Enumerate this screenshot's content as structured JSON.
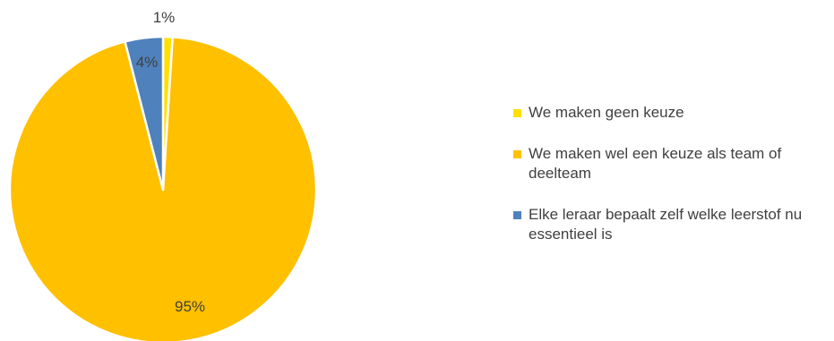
{
  "chart_data": {
    "type": "pie",
    "title": "",
    "start_angle_deg": 0,
    "direction": "clockwise",
    "legend_position": "right",
    "slices": [
      {
        "label": "We maken geen keuze",
        "value": 1,
        "data_label": "1%",
        "color": "#FFE000"
      },
      {
        "label": "We maken wel een keuze als team of deelteam",
        "value": 95,
        "data_label": "95%",
        "color": "#FFC000"
      },
      {
        "label": "Elke leraar bepaalt zelf welke leerstof nu essentieel is",
        "value": 4,
        "data_label": "4%",
        "color": "#4F81BD"
      }
    ]
  }
}
